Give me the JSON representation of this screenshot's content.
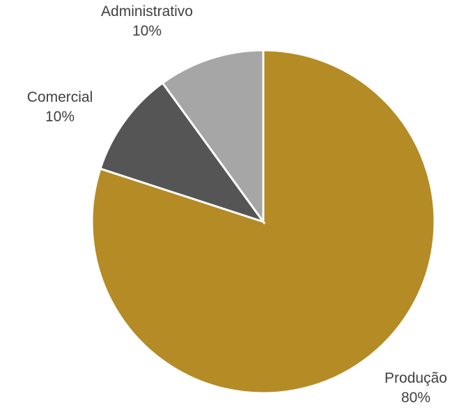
{
  "chart_data": {
    "type": "pie",
    "title": "",
    "slices": [
      {
        "label": "Produção",
        "value": 80,
        "value_label": "80%",
        "color": "#b58b26"
      },
      {
        "label": "Comercial",
        "value": 10,
        "value_label": "10%",
        "color": "#555555"
      },
      {
        "label": "Administrativo",
        "value": 10,
        "value_label": "10%",
        "color": "#a6a6a6"
      }
    ],
    "start_angle_deg": 0,
    "direction": "clockwise",
    "legend": "none",
    "data_labels": "outside, category name and percentage"
  }
}
